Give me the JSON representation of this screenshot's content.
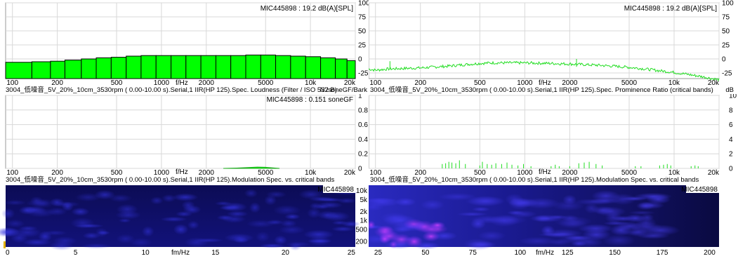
{
  "theme": {
    "green": "#00ff00",
    "bar_edge": "#000000",
    "grid": "#d8d8d8",
    "spec_dark": "#0a0a3a",
    "spec_blue": "#2020d0",
    "spec_magenta": "#c040ff"
  },
  "common": {
    "freq_axis_label": "f/Hz",
    "mod_axis_label": "fm/Hz"
  },
  "panels": [
    {
      "id": "top-left",
      "info": "MIC445898 : 19.2 dB(A)[SPL]",
      "caption": "3004_低噪音_5V_20%_10cm_3530rpm ( 0.00-10.00 s).Serial,1 IIR(HP 125).Spec. Loudness (Filter / ISO 532 B)",
      "unit": "N'/soneGF/Bark",
      "x_ticks": [
        "100",
        "200",
        "500",
        "1000",
        "2000",
        "5000",
        "10k",
        "20k"
      ],
      "y_ticks": [
        "100",
        "75",
        "50",
        "25",
        "0",
        "-25"
      ]
    },
    {
      "id": "top-right",
      "info": "MIC445898 : 19.2 dB(A)[SPL]",
      "caption": "3004_低噪音_5V_20%_10cm_3530rpm ( 0.00-10.00 s).Serial,1 IIR(HP 125).Spec. Prominence Ratio (critical bands)",
      "unit": "dB",
      "x_ticks": [
        "100",
        "200",
        "500",
        "1000",
        "2000",
        "5000",
        "10k",
        "20k"
      ],
      "y_ticks": [
        "100",
        "75",
        "50",
        "25",
        "0",
        "-25"
      ]
    },
    {
      "id": "mid-left",
      "info": "MIC445898 : 0.151 soneGF",
      "caption": "3004_低噪音_5V_20%_10cm_3530rpm ( 0.00-10.00 s).Serial,1 IIR(HP 125).Modulation Spec. vs. critical bands",
      "x_ticks": [
        "100",
        "200",
        "500",
        "1000",
        "2000",
        "5000",
        "10k",
        "20k"
      ],
      "y_ticks": [
        "1",
        "0.8",
        "0.6",
        "0.4",
        "0.2",
        "0"
      ]
    },
    {
      "id": "mid-right",
      "caption": "3004_低噪音_5V_20%_10cm_3530rpm ( 0.00-10.00 s).Serial,1 IIR(HP 125).Modulation Spec. vs. critical bands",
      "x_ticks": [
        "100",
        "200",
        "500",
        "1000",
        "2000",
        "5000",
        "10k",
        "20k"
      ],
      "y_ticks": [
        "10",
        "8",
        "6",
        "4",
        "2",
        "0"
      ]
    },
    {
      "id": "bottom-left",
      "info": "MIC445898",
      "x_ticks": [
        "0",
        "5",
        "10",
        "15",
        "20",
        "25"
      ],
      "y_ticks": [
        "10k",
        "5k",
        "2k",
        "1k",
        "500",
        "200"
      ]
    },
    {
      "id": "bottom-right",
      "info": "MIC445898",
      "x_ticks": [
        "25",
        "50",
        "75",
        "100",
        "125",
        "150",
        "175",
        "200"
      ]
    }
  ],
  "chart_data": [
    {
      "type": "bar",
      "panel": "top-left",
      "xscale": "log",
      "xlim": [
        90,
        20000
      ],
      "ylim": [
        -35,
        100
      ],
      "band_edges": [
        90,
        135,
        180,
        225,
        290,
        365,
        460,
        580,
        730,
        920,
        1160,
        1460,
        1840,
        2320,
        2920,
        3680,
        4640,
        5840,
        7360,
        9280,
        11700,
        14700,
        17600,
        20000
      ],
      "values": [
        -6,
        -5,
        -4,
        -2,
        0,
        2,
        3,
        5,
        6,
        6,
        6,
        6,
        6,
        6,
        6,
        7,
        7,
        6,
        5,
        4,
        2,
        0,
        -3
      ]
    },
    {
      "type": "line",
      "panel": "top-right",
      "xscale": "log",
      "xlim": [
        90,
        20000
      ],
      "ylim": [
        -35,
        100
      ],
      "x": [
        90,
        100,
        120,
        150,
        200,
        300,
        400,
        500,
        600,
        800,
        1000,
        1500,
        2000,
        3000,
        4000,
        5000,
        6000,
        8000,
        10000,
        12000,
        15000,
        18000,
        20000
      ],
      "y": [
        -18,
        -20,
        -18,
        -17,
        -16,
        -13,
        -10,
        -8,
        -7,
        -7,
        -7,
        -8,
        -9,
        -11,
        -13,
        -15,
        -17,
        -21,
        -24,
        -27,
        -31,
        -35,
        -37
      ],
      "peaks": [
        {
          "x": 125,
          "y": -4
        },
        {
          "x": 2220,
          "y": 0
        }
      ]
    },
    {
      "type": "area",
      "panel": "mid-left",
      "xscale": "log",
      "xlim": [
        90,
        20000
      ],
      "ylim": [
        0,
        1
      ],
      "x": [
        2600,
        3200,
        3800,
        4400,
        5000,
        5600,
        6200
      ],
      "y": [
        0.0,
        0.005,
        0.012,
        0.018,
        0.015,
        0.008,
        0.0
      ]
    },
    {
      "type": "bar",
      "panel": "mid-right",
      "xscale": "log",
      "xlim": [
        90,
        20000
      ],
      "ylim": [
        0,
        10
      ],
      "x": [
        280,
        295,
        310,
        325,
        345,
        365,
        400,
        500,
        520,
        560,
        600,
        640,
        700,
        760,
        820,
        900,
        980,
        1100,
        1500,
        1600,
        1700,
        2000,
        2300,
        2500,
        2700,
        3000,
        3300,
        5500,
        6000,
        8000,
        8500,
        9000,
        9500,
        13000,
        13800,
        14500
      ],
      "y": [
        0.6,
        0.7,
        0.9,
        0.8,
        0.7,
        1.1,
        0.6,
        0.4,
        0.9,
        0.6,
        0.5,
        0.7,
        0.6,
        0.8,
        0.5,
        0.4,
        0.6,
        0.3,
        0.3,
        0.5,
        0.3,
        0.3,
        0.7,
        0.8,
        0.9,
        0.6,
        0.4,
        0.3,
        0.3,
        0.4,
        0.5,
        0.6,
        0.4,
        0.3,
        0.4,
        0.3
      ]
    },
    {
      "type": "heatmap",
      "panel": "bottom-left",
      "xlim": [
        0,
        25
      ],
      "note_axis": "fm/Hz"
    },
    {
      "type": "heatmap",
      "panel": "bottom-right",
      "xlim": [
        20,
        205
      ],
      "note_axis": "fm/Hz"
    }
  ]
}
